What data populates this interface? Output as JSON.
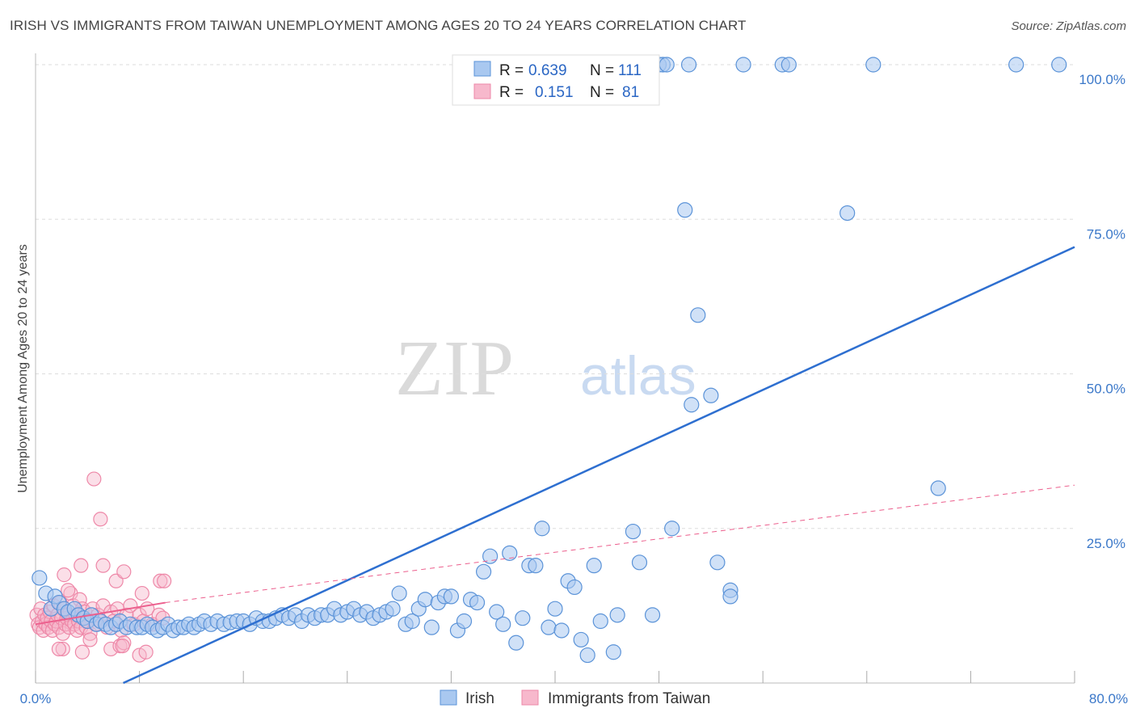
{
  "chart_data": {
    "type": "scatter",
    "title": "IRISH VS IMMIGRANTS FROM TAIWAN UNEMPLOYMENT AMONG AGES 20 TO 24 YEARS CORRELATION CHART",
    "source": "Source: ZipAtlas.com",
    "xlabel": "",
    "ylabel": "Unemployment Among Ages 20 to 24 years",
    "xlim": [
      0,
      80
    ],
    "ylim": [
      0,
      105
    ],
    "x_tick_labels": [
      "0.0%",
      "80.0%"
    ],
    "y_ticks": [
      25,
      50,
      75,
      100
    ],
    "y_tick_labels": [
      "25.0%",
      "50.0%",
      "75.0%",
      "100.0%"
    ],
    "watermark": {
      "zip": "ZIP",
      "atlas": "atlas"
    },
    "legend": {
      "r_label": "R =",
      "n_label": "N =",
      "entries": [
        {
          "name": "Irish",
          "r": "0.639",
          "n": "111"
        },
        {
          "name": "Immigrants from Taiwan",
          "r": "0.151",
          "n": "81"
        }
      ]
    },
    "colors": {
      "irish_fill": "#a9c8f0",
      "irish_stroke": "#5b93d8",
      "irish_line": "#2e6fd0",
      "taiwan_fill": "#f7b8cc",
      "taiwan_stroke": "#ee88a8",
      "taiwan_line": "#ec5f8d",
      "grid": "#dddddd",
      "axis": "#bbbbbb"
    },
    "series": [
      {
        "name": "Irish",
        "trend": {
          "x1": 0,
          "y1": -6.5,
          "x2": 80,
          "y2": 70.5,
          "style": "solid"
        },
        "points": [
          [
            0.3,
            17
          ],
          [
            0.8,
            14.5
          ],
          [
            1.2,
            12
          ],
          [
            1.5,
            14
          ],
          [
            1.8,
            13
          ],
          [
            2.2,
            12
          ],
          [
            2.5,
            11.5
          ],
          [
            3,
            12
          ],
          [
            3.3,
            11
          ],
          [
            3.7,
            10.5
          ],
          [
            4,
            10
          ],
          [
            4.3,
            11
          ],
          [
            4.7,
            9.5
          ],
          [
            5,
            10
          ],
          [
            5.4,
            9.5
          ],
          [
            5.8,
            9
          ],
          [
            6.2,
            9.5
          ],
          [
            6.5,
            10
          ],
          [
            7,
            9
          ],
          [
            7.3,
            9.5
          ],
          [
            7.8,
            9
          ],
          [
            8.2,
            9
          ],
          [
            8.6,
            9.5
          ],
          [
            9,
            9
          ],
          [
            9.4,
            8.5
          ],
          [
            9.8,
            9
          ],
          [
            10.2,
            9.5
          ],
          [
            10.6,
            8.5
          ],
          [
            11,
            9
          ],
          [
            11.4,
            9
          ],
          [
            11.8,
            9.5
          ],
          [
            12.2,
            9
          ],
          [
            12.6,
            9.5
          ],
          [
            13,
            10
          ],
          [
            13.5,
            9.5
          ],
          [
            14,
            10
          ],
          [
            14.5,
            9.5
          ],
          [
            15,
            9.8
          ],
          [
            15.5,
            10
          ],
          [
            16,
            10
          ],
          [
            16.5,
            9.5
          ],
          [
            17,
            10.5
          ],
          [
            17.5,
            10
          ],
          [
            18,
            10
          ],
          [
            18.5,
            10.5
          ],
          [
            19,
            11
          ],
          [
            19.5,
            10.5
          ],
          [
            20,
            11
          ],
          [
            20.5,
            10
          ],
          [
            21,
            11
          ],
          [
            21.5,
            10.5
          ],
          [
            22,
            11
          ],
          [
            22.5,
            11
          ],
          [
            23,
            12
          ],
          [
            23.5,
            11
          ],
          [
            24,
            11.5
          ],
          [
            24.5,
            12
          ],
          [
            25,
            11
          ],
          [
            25.5,
            11.5
          ],
          [
            26,
            10.5
          ],
          [
            26.5,
            11
          ],
          [
            27,
            11.5
          ],
          [
            27.5,
            12
          ],
          [
            28,
            14.5
          ],
          [
            28.5,
            9.5
          ],
          [
            29,
            10
          ],
          [
            29.5,
            12
          ],
          [
            30,
            13.5
          ],
          [
            30.5,
            9
          ],
          [
            31,
            13
          ],
          [
            31.5,
            14
          ],
          [
            32,
            14
          ],
          [
            32.5,
            8.5
          ],
          [
            33,
            10
          ],
          [
            33.5,
            13.5
          ],
          [
            34,
            13
          ],
          [
            34.5,
            18
          ],
          [
            35,
            20.5
          ],
          [
            35.5,
            11.5
          ],
          [
            36,
            9.5
          ],
          [
            36.5,
            21
          ],
          [
            37,
            6.5
          ],
          [
            37.5,
            10.5
          ],
          [
            38,
            19
          ],
          [
            38.5,
            19
          ],
          [
            39,
            25
          ],
          [
            39.5,
            9
          ],
          [
            40,
            12
          ],
          [
            40.5,
            8.5
          ],
          [
            41,
            16.5
          ],
          [
            41.5,
            15.5
          ],
          [
            42,
            7
          ],
          [
            42.5,
            4.5
          ],
          [
            43,
            19
          ],
          [
            43.5,
            10
          ],
          [
            44.5,
            5
          ],
          [
            44.8,
            11
          ],
          [
            46,
            24.5
          ],
          [
            46.5,
            19.5
          ],
          [
            47.5,
            11
          ],
          [
            49,
            25
          ],
          [
            50.5,
            45
          ],
          [
            51,
            59.5
          ],
          [
            52,
            46.5
          ],
          [
            52.5,
            19.5
          ],
          [
            53.5,
            15
          ],
          [
            53.5,
            14
          ],
          [
            62.5,
            76
          ],
          [
            69.5,
            31.5
          ],
          [
            50,
            76.5
          ],
          [
            48,
            100
          ],
          [
            48.3,
            100
          ],
          [
            48.6,
            100
          ],
          [
            50.3,
            100
          ],
          [
            54.5,
            100
          ],
          [
            57.5,
            100
          ],
          [
            58,
            100
          ],
          [
            64.5,
            100
          ],
          [
            75.5,
            100
          ],
          [
            78.8,
            100
          ]
        ]
      },
      {
        "name": "Immigrants from Taiwan",
        "trend": {
          "x1": 0,
          "y1": 9.5,
          "x2": 10,
          "y2": 13,
          "style": "solid",
          "dash_to_x": 80,
          "dash_to_y": 32
        },
        "points": [
          [
            0.1,
            11
          ],
          [
            0.2,
            9.5
          ],
          [
            0.3,
            9
          ],
          [
            0.4,
            12
          ],
          [
            0.5,
            10
          ],
          [
            0.6,
            8.5
          ],
          [
            0.7,
            11
          ],
          [
            0.8,
            9.5
          ],
          [
            0.9,
            10.5
          ],
          [
            1,
            9
          ],
          [
            1.1,
            11.5
          ],
          [
            1.2,
            10
          ],
          [
            1.3,
            8.5
          ],
          [
            1.4,
            12.5
          ],
          [
            1.5,
            9.5
          ],
          [
            1.6,
            10
          ],
          [
            1.7,
            11
          ],
          [
            1.8,
            9
          ],
          [
            1.9,
            13
          ],
          [
            2,
            10.5
          ],
          [
            2.1,
            8
          ],
          [
            2.2,
            12
          ],
          [
            2.3,
            9.5
          ],
          [
            2.4,
            10.5
          ],
          [
            2.5,
            11
          ],
          [
            2.6,
            9
          ],
          [
            2.7,
            14.5
          ],
          [
            2.8,
            10
          ],
          [
            2.9,
            12.5
          ],
          [
            3,
            9.5
          ],
          [
            3.1,
            11
          ],
          [
            3.2,
            8.5
          ],
          [
            3.3,
            10
          ],
          [
            3.4,
            13.5
          ],
          [
            3.5,
            9
          ],
          [
            3.6,
            12
          ],
          [
            3.7,
            10.5
          ],
          [
            3.8,
            11.5
          ],
          [
            3.9,
            9
          ],
          [
            4,
            10
          ],
          [
            4.2,
            8
          ],
          [
            4.4,
            12
          ],
          [
            4.6,
            9.5
          ],
          [
            4.8,
            11
          ],
          [
            5,
            10
          ],
          [
            5.2,
            12.5
          ],
          [
            5.5,
            9
          ],
          [
            5.8,
            11.5
          ],
          [
            6,
            10
          ],
          [
            6.3,
            12
          ],
          [
            6.6,
            8.5
          ],
          [
            7,
            11
          ],
          [
            7.3,
            12.5
          ],
          [
            7.6,
            9.5
          ],
          [
            8,
            11
          ],
          [
            8.3,
            10
          ],
          [
            8.6,
            12
          ],
          [
            9,
            9.5
          ],
          [
            9.5,
            11
          ],
          [
            9.8,
            10.5
          ],
          [
            2.2,
            17.5
          ],
          [
            2.5,
            15
          ],
          [
            3.5,
            19
          ],
          [
            4.5,
            33
          ],
          [
            5,
            26.5
          ],
          [
            5.2,
            19
          ],
          [
            6.2,
            16.5
          ],
          [
            6.8,
            18
          ],
          [
            8.2,
            14.5
          ],
          [
            9.6,
            16.5
          ],
          [
            9.9,
            16.5
          ],
          [
            2.1,
            5.5
          ],
          [
            3.6,
            5
          ],
          [
            5.8,
            5.5
          ],
          [
            6.5,
            6
          ],
          [
            6.8,
            6.5
          ],
          [
            8,
            4.5
          ],
          [
            8.5,
            5
          ],
          [
            4.2,
            7
          ],
          [
            6.7,
            6
          ],
          [
            1.8,
            5.5
          ]
        ]
      }
    ]
  }
}
